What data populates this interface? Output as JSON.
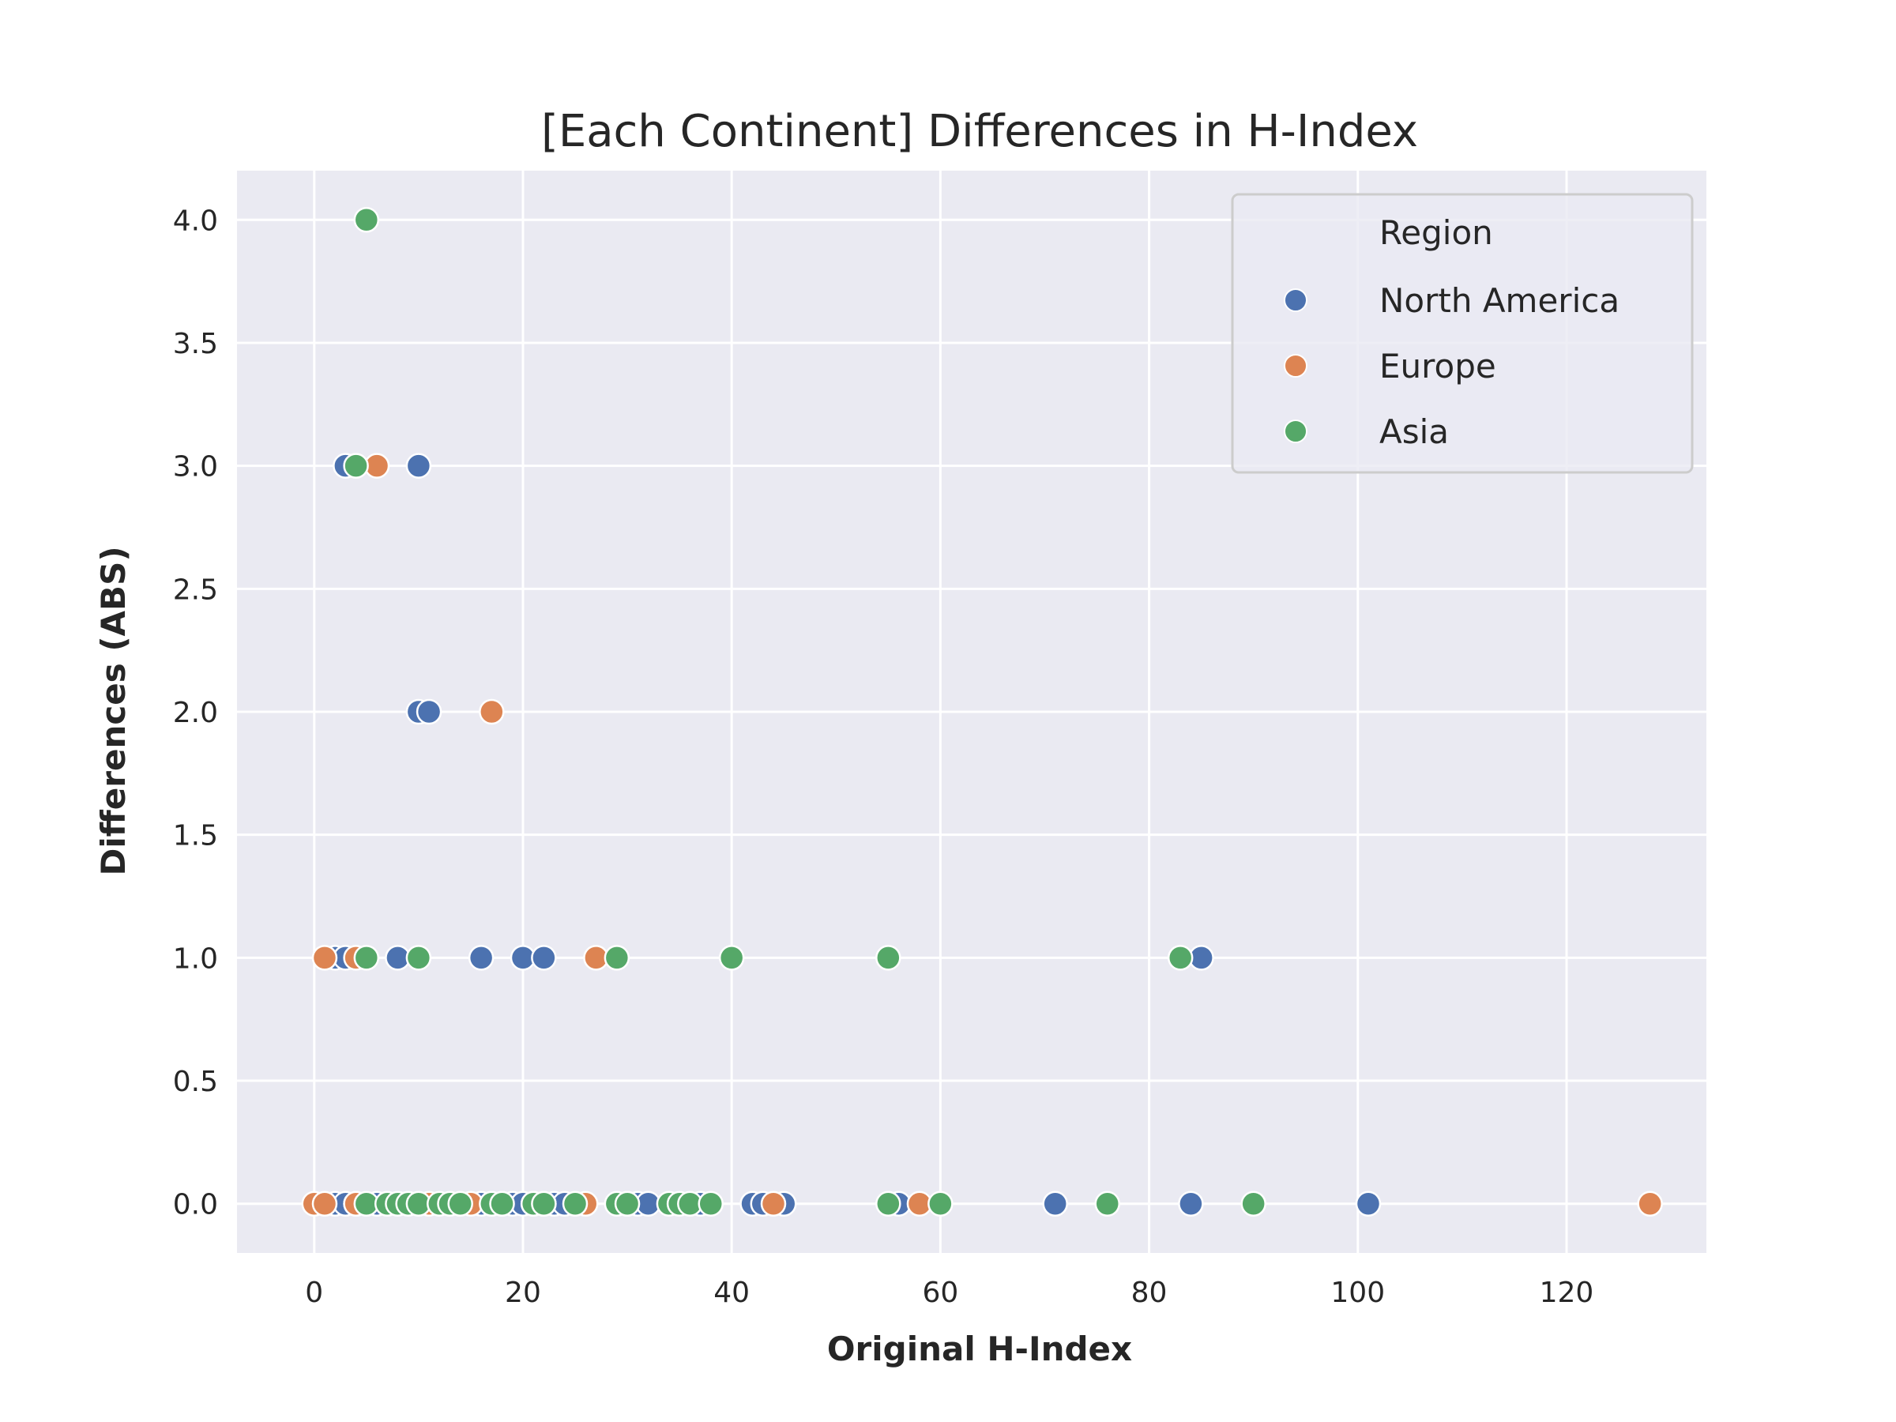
{
  "chart_data": {
    "type": "scatter",
    "title": "[Each Continent] Differences in H-Index",
    "xlabel": "Original H-Index",
    "ylabel": "Differences (ABS)",
    "xlim": [
      -7.4,
      133.4
    ],
    "ylim": [
      -0.2,
      4.2
    ],
    "xticks": [
      0,
      20,
      40,
      60,
      80,
      100,
      120
    ],
    "yticks": [
      0.0,
      0.5,
      1.0,
      1.5,
      2.0,
      2.5,
      3.0,
      3.5,
      4.0
    ],
    "xtick_labels": [
      "0",
      "20",
      "40",
      "60",
      "80",
      "100",
      "120"
    ],
    "ytick_labels": [
      "0.0",
      "0.5",
      "1.0",
      "1.5",
      "2.0",
      "2.5",
      "3.0",
      "3.5",
      "4.0"
    ],
    "grid": true,
    "legend": {
      "title": "Region",
      "placement": "top-right"
    },
    "series": [
      {
        "name": "North America",
        "color": "#4C72B0",
        "points": [
          [
            2,
            0
          ],
          [
            3,
            0
          ],
          [
            4,
            0
          ],
          [
            6,
            0
          ],
          [
            16,
            0
          ],
          [
            17,
            0
          ],
          [
            18,
            0
          ],
          [
            19,
            0
          ],
          [
            20,
            0
          ],
          [
            21,
            0
          ],
          [
            23,
            0
          ],
          [
            24,
            0
          ],
          [
            30,
            0
          ],
          [
            31,
            0
          ],
          [
            32,
            0
          ],
          [
            37,
            0
          ],
          [
            42,
            0
          ],
          [
            43,
            0
          ],
          [
            45,
            0
          ],
          [
            56,
            0
          ],
          [
            71,
            0
          ],
          [
            84,
            0
          ],
          [
            101,
            0
          ],
          [
            2,
            1
          ],
          [
            3,
            1
          ],
          [
            8,
            1
          ],
          [
            16,
            1
          ],
          [
            20,
            1
          ],
          [
            22,
            1
          ],
          [
            85,
            1
          ],
          [
            10,
            2
          ],
          [
            11,
            2
          ],
          [
            3,
            3
          ],
          [
            10,
            3
          ]
        ]
      },
      {
        "name": "Europe",
        "color": "#DD8452",
        "points": [
          [
            0,
            0
          ],
          [
            1,
            0
          ],
          [
            4,
            0
          ],
          [
            11,
            0
          ],
          [
            15,
            0
          ],
          [
            22,
            0
          ],
          [
            26,
            0
          ],
          [
            44,
            0
          ],
          [
            58,
            0
          ],
          [
            128,
            0
          ],
          [
            1,
            1
          ],
          [
            4,
            1
          ],
          [
            27,
            1
          ],
          [
            17,
            2
          ],
          [
            6,
            3
          ]
        ]
      },
      {
        "name": "Asia",
        "color": "#55A868",
        "points": [
          [
            5,
            0
          ],
          [
            7,
            0
          ],
          [
            8,
            0
          ],
          [
            9,
            0
          ],
          [
            10,
            0
          ],
          [
            12,
            0
          ],
          [
            13,
            0
          ],
          [
            14,
            0
          ],
          [
            17,
            0
          ],
          [
            18,
            0
          ],
          [
            21,
            0
          ],
          [
            22,
            0
          ],
          [
            25,
            0
          ],
          [
            29,
            0
          ],
          [
            30,
            0
          ],
          [
            34,
            0
          ],
          [
            35,
            0
          ],
          [
            36,
            0
          ],
          [
            38,
            0
          ],
          [
            55,
            0
          ],
          [
            60,
            0
          ],
          [
            76,
            0
          ],
          [
            90,
            0
          ],
          [
            5,
            1
          ],
          [
            10,
            1
          ],
          [
            29,
            1
          ],
          [
            40,
            1
          ],
          [
            55,
            1
          ],
          [
            83,
            1
          ],
          [
            4,
            3
          ],
          [
            5,
            4
          ]
        ]
      }
    ]
  }
}
